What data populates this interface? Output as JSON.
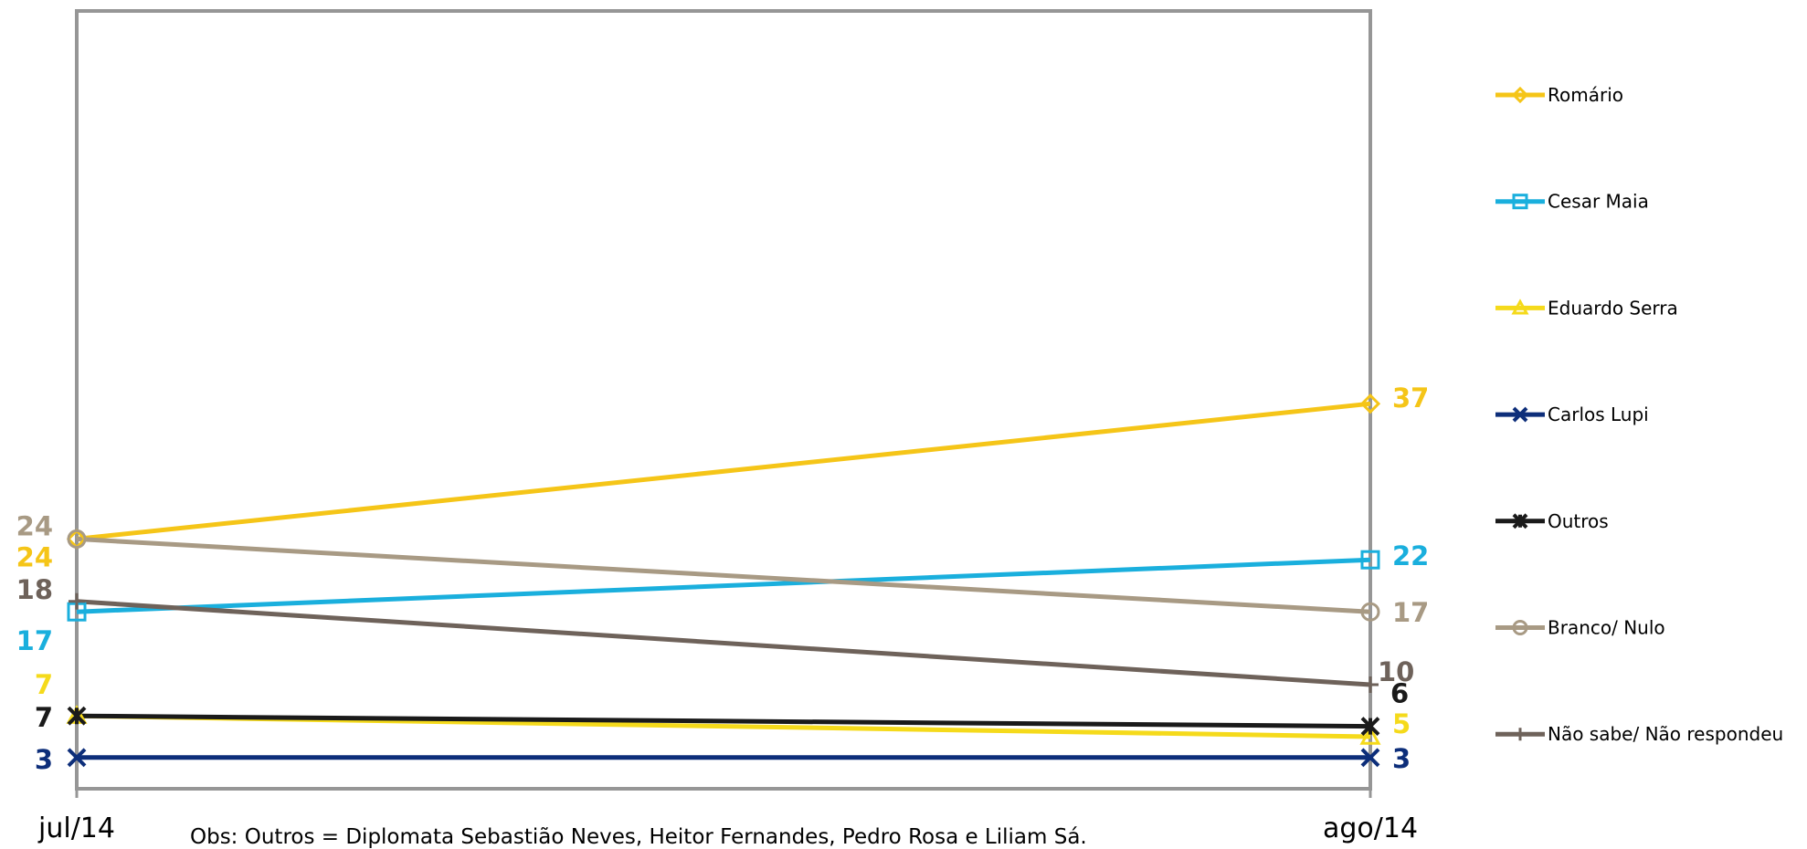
{
  "chart_data": {
    "type": "line",
    "categories": [
      "jul/14",
      "ago/14"
    ],
    "series": [
      {
        "name": "Romário",
        "values": [
          24,
          37
        ],
        "color": "#F5C518",
        "marker": "diamond"
      },
      {
        "name": "Cesar Maia",
        "values": [
          17,
          22
        ],
        "color": "#1AAFDD",
        "marker": "square"
      },
      {
        "name": "Eduardo Serra",
        "values": [
          7,
          5
        ],
        "color": "#F5DA1B",
        "marker": "triangle"
      },
      {
        "name": "Carlos Lupi",
        "values": [
          3,
          3
        ],
        "color": "#0D2E7A",
        "marker": "x"
      },
      {
        "name": "Outros",
        "values": [
          7,
          6
        ],
        "color": "#1A1A1A",
        "marker": "star"
      },
      {
        "name": "Branco/ Nulo",
        "values": [
          24,
          17
        ],
        "color": "#A89A84",
        "marker": "circle"
      },
      {
        "name": "Não sabe/ Não respondeu",
        "values": [
          18,
          10
        ],
        "color": "#6E625A",
        "marker": "plus"
      }
    ],
    "ylim": [
      0,
      50
    ],
    "grid": false,
    "legend": "right",
    "note": "Obs: Outros = Diplomata Sebastião Neves, Heitor Fernandes, Pedro Rosa e Liliam Sá."
  }
}
